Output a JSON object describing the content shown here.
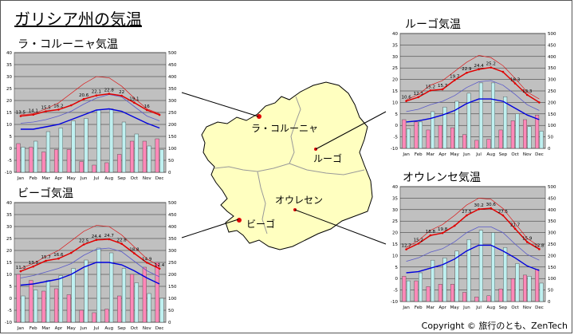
{
  "page_title": "ガリシア州の気温",
  "copyright": "Copyright © 旅行のとも、ZenTech",
  "map": {
    "cities": [
      {
        "name": "ラ・コルーニャ"
      },
      {
        "name": "ルーゴ"
      },
      {
        "name": "オウレセン"
      },
      {
        "name": "ビーゴ"
      }
    ]
  },
  "colors": {
    "max": "#e00000",
    "min": "#0000dd",
    "avg": "#5a5ac8",
    "rain": "#ff88b8",
    "sun": "#bff0f0",
    "plot_bg": "#c0c0c0",
    "map_fill": "#ffffc0"
  },
  "chart_data": [
    {
      "id": "coruna",
      "title": "ラ・コルーニャ気温",
      "type": "line+bar",
      "categories": [
        "Jan",
        "Feb",
        "Mar",
        "Apr",
        "May",
        "Jun",
        "Jul",
        "Aug",
        "Sep",
        "Oct",
        "Nov",
        "Dec"
      ],
      "ylim_left": [
        -10,
        40
      ],
      "ylim_right": [
        0,
        500
      ],
      "left_ticks": [
        -10,
        -5,
        0,
        5,
        10,
        15,
        20,
        25,
        30,
        35,
        40
      ],
      "right_ticks": [
        0,
        50,
        100,
        150,
        200,
        250,
        300,
        350,
        400,
        450,
        500
      ],
      "max_temp": [
        13.5,
        14.1,
        15.5,
        16.2,
        18.0,
        20.6,
        22.1,
        22.8,
        22.0,
        19.1,
        16.0,
        14.0
      ],
      "max_labels": [
        "13.5",
        "14.1",
        "15.5",
        "16.2",
        "",
        "20.6",
        "22.1",
        "22.8",
        "22",
        "19.1",
        "16",
        ""
      ],
      "min_temp": [
        8.0,
        8.0,
        9.0,
        10.0,
        12.0,
        14.0,
        16.0,
        16.5,
        15.5,
        13.0,
        10.5,
        8.5
      ],
      "avg_temp": [
        10.5,
        11.0,
        12.0,
        13.5,
        15.5,
        18.5,
        21.0,
        22.5,
        21.5,
        17.5,
        13.5,
        11.5
      ],
      "upper_temp": [
        14.0,
        14.5,
        16.5,
        19.0,
        23.0,
        27.0,
        30.0,
        29.5,
        26.0,
        21.0,
        16.5,
        14.5
      ],
      "rain": [
        120,
        105,
        85,
        95,
        95,
        45,
        30,
        40,
        75,
        130,
        130,
        140
      ],
      "sun": [
        105,
        130,
        170,
        185,
        215,
        225,
        260,
        265,
        210,
        160,
        110,
        95
      ]
    },
    {
      "id": "lugo",
      "title": "ルーゴ気温",
      "type": "line+bar",
      "categories": [
        "Jan",
        "Feb",
        "Mar",
        "Apr",
        "May",
        "Jun",
        "Jul",
        "Aug",
        "Sep",
        "Oct",
        "Nov",
        "Dec"
      ],
      "ylim_left": [
        -10,
        40
      ],
      "ylim_right": [
        0,
        500
      ],
      "left_ticks": [
        -10,
        -5,
        0,
        5,
        10,
        15,
        20,
        25,
        30,
        35,
        40
      ],
      "right_ticks": [
        0,
        50,
        100,
        150,
        200,
        250,
        300,
        350,
        400,
        450,
        500
      ],
      "max_temp": [
        10.6,
        12.3,
        15.2,
        15.7,
        19.7,
        22.9,
        24.4,
        25.2,
        23.3,
        18.3,
        13.3,
        10.0
      ],
      "max_labels": [
        "10.6",
        "12.3",
        "15.2",
        "15.7",
        "19.7",
        "22.9",
        "24.4",
        "25.2",
        "",
        "18.3",
        "13.3",
        ""
      ],
      "min_temp": [
        1.5,
        2.0,
        3.0,
        4.5,
        6.5,
        9.5,
        11.5,
        11.5,
        10.5,
        7.5,
        4.5,
        2.5
      ],
      "avg_temp": [
        6.0,
        7.0,
        9.0,
        10.5,
        13.0,
        16.5,
        19.0,
        19.5,
        17.5,
        13.5,
        9.0,
        6.5
      ],
      "upper_temp": [
        11.0,
        13.5,
        17.5,
        19.5,
        23.5,
        27.5,
        30.5,
        29.5,
        26.0,
        20.5,
        14.5,
        11.5
      ],
      "rain": [
        125,
        115,
        80,
        100,
        90,
        60,
        35,
        40,
        80,
        120,
        125,
        145
      ],
      "sun": [
        85,
        115,
        160,
        180,
        205,
        240,
        285,
        285,
        225,
        150,
        95,
        75
      ]
    },
    {
      "id": "vigo",
      "title": "ビーゴ気温",
      "type": "line+bar",
      "categories": [
        "Jan",
        "Feb",
        "Mar",
        "Apr",
        "May",
        "Jun",
        "Jul",
        "Aug",
        "Sep",
        "Oct",
        "Nov",
        "Dec"
      ],
      "ylim_left": [
        -10,
        40
      ],
      "ylim_right": [
        0,
        500
      ],
      "left_ticks": [
        -10,
        -5,
        0,
        5,
        10,
        15,
        20,
        25,
        30,
        35,
        40
      ],
      "right_ticks": [
        0,
        50,
        100,
        150,
        200,
        250,
        300,
        350,
        400,
        450,
        500
      ],
      "max_temp": [
        11.3,
        13.3,
        15.7,
        16.6,
        19.0,
        22.5,
        24.4,
        24.7,
        22.8,
        18.8,
        14.9,
        12.4
      ],
      "max_labels": [
        "11.3",
        "13.3",
        "15.7",
        "16.6",
        "",
        "22.5",
        "24.4",
        "24.7",
        "22.8",
        "18.8",
        "14.9",
        "12.4"
      ],
      "min_temp": [
        5.5,
        6.0,
        7.0,
        8.0,
        10.0,
        13.0,
        15.0,
        15.0,
        14.0,
        11.5,
        8.5,
        6.0
      ],
      "avg_temp": [
        8.5,
        9.5,
        11.0,
        12.5,
        14.5,
        18.0,
        20.5,
        21.0,
        19.5,
        15.5,
        11.5,
        9.0
      ],
      "upper_temp": [
        12.5,
        14.5,
        17.5,
        20.0,
        24.0,
        28.0,
        30.5,
        30.0,
        26.5,
        21.5,
        16.5,
        13.5
      ],
      "rain": [
        200,
        175,
        130,
        140,
        115,
        50,
        40,
        55,
        110,
        200,
        230,
        250
      ],
      "sun": [
        110,
        135,
        175,
        195,
        225,
        260,
        310,
        290,
        225,
        165,
        120,
        100
      ]
    },
    {
      "id": "ourense",
      "title": "オウレンセ気温",
      "type": "line+bar",
      "categories": [
        "Jan",
        "Feb",
        "Mar",
        "Apr",
        "May",
        "Jun",
        "Jul",
        "Aug",
        "Sep",
        "Oct",
        "Nov",
        "Dec"
      ],
      "ylim_left": [
        -10,
        40
      ],
      "ylim_right": [
        0,
        500
      ],
      "left_ticks": [
        -10,
        -5,
        0,
        5,
        10,
        15,
        20,
        25,
        30,
        35,
        40
      ],
      "right_ticks": [
        0,
        50,
        100,
        150,
        200,
        250,
        300,
        350,
        400,
        450,
        500
      ],
      "max_temp": [
        12.7,
        15.2,
        18.8,
        19.8,
        23.0,
        27.5,
        30.2,
        30.6,
        27.5,
        21.7,
        15.9,
        12.8
      ],
      "max_labels": [
        "12.7",
        "15.2",
        "18.8",
        "19.8",
        "",
        "27.5",
        "30.2",
        "30.6",
        "27.5",
        "21.7",
        "15.9",
        "12.8"
      ],
      "min_temp": [
        2.5,
        3.0,
        4.5,
        6.0,
        8.5,
        12.0,
        14.5,
        14.5,
        12.0,
        9.0,
        5.5,
        3.5
      ],
      "avg_temp": [
        7.5,
        9.0,
        11.5,
        13.0,
        16.0,
        20.0,
        22.5,
        22.5,
        20.0,
        15.0,
        10.5,
        8.0
      ],
      "upper_temp": [
        13.5,
        16.5,
        21.0,
        23.5,
        27.5,
        32.0,
        35.0,
        34.5,
        30.5,
        24.0,
        17.5,
        14.0
      ],
      "rain": [
        110,
        90,
        65,
        75,
        75,
        40,
        20,
        25,
        55,
        100,
        115,
        140
      ],
      "sun": [
        90,
        125,
        180,
        190,
        220,
        270,
        310,
        300,
        235,
        165,
        110,
        80
      ]
    }
  ]
}
